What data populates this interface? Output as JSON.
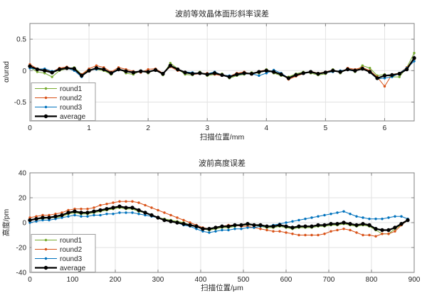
{
  "figure": {
    "background": "#ffffff"
  },
  "colors": {
    "grid": "#e2e2e2",
    "axis_box": "#828282",
    "tick_text": "#262626",
    "legend_border": "#9b9b9b",
    "legend_background": "#ffffff",
    "round1": "#77AC30",
    "round2": "#D95319",
    "round3": "#0072BD",
    "average": "#000000"
  },
  "chart_data": [
    {
      "id": "slope-error",
      "type": "line",
      "title": "波前等效晶体面形斜率误差",
      "xlabel": "扫描位置/mm",
      "ylabel": "α/urad",
      "xlim": [
        0,
        6.5
      ],
      "ylim": [
        -0.8,
        0.75
      ],
      "grid": true,
      "xticks": {
        "values": [
          0,
          1,
          2,
          3,
          4,
          5,
          6
        ],
        "labels": [
          "0",
          "1",
          "2",
          "3",
          "4",
          "5",
          "6"
        ]
      },
      "yticks": {
        "values": [
          -0.5,
          0,
          0.5
        ],
        "labels": [
          "-0.5",
          "0",
          "0.5"
        ]
      },
      "legend": {
        "position": "southwest",
        "entries": [
          "round1",
          "round2",
          "round3",
          "average"
        ]
      },
      "x": [
        0,
        0.125,
        0.25,
        0.375,
        0.5,
        0.625,
        0.75,
        0.875,
        1,
        1.125,
        1.25,
        1.375,
        1.5,
        1.625,
        1.75,
        1.875,
        2,
        2.125,
        2.25,
        2.375,
        2.5,
        2.625,
        2.75,
        2.875,
        3,
        3.125,
        3.25,
        3.375,
        3.5,
        3.625,
        3.75,
        3.875,
        4,
        4.125,
        4.25,
        4.375,
        4.5,
        4.625,
        4.75,
        4.875,
        5,
        5.125,
        5.25,
        5.375,
        5.5,
        5.625,
        5.75,
        5.875,
        6,
        6.125,
        6.25,
        6.375,
        6.5
      ],
      "series": [
        {
          "name": "round1",
          "color": "#77AC30",
          "line_width": 1,
          "marker_radius": 1.7,
          "values": [
            0.05,
            -0.02,
            -0.04,
            -0.1,
            0.0,
            0.03,
            0.05,
            -0.06,
            0.02,
            0.02,
            0.0,
            -0.06,
            0.04,
            -0.04,
            -0.06,
            0.0,
            -0.04,
            0.02,
            -0.07,
            0.12,
            0.03,
            -0.06,
            -0.07,
            -0.02,
            -0.08,
            -0.06,
            -0.05,
            -0.12,
            -0.08,
            -0.06,
            -0.03,
            -0.04,
            0.02,
            -0.04,
            -0.08,
            -0.1,
            -0.05,
            -0.02,
            -0.04,
            -0.07,
            -0.05,
            0.02,
            -0.04,
            0.03,
            -0.02,
            0.08,
            0.04,
            -0.08,
            -0.06,
            -0.1,
            -0.1,
            0.05,
            0.28
          ]
        },
        {
          "name": "round2",
          "color": "#D95319",
          "line_width": 1,
          "marker_radius": 1.7,
          "values": [
            0.1,
            0.03,
            0.02,
            -0.02,
            0.04,
            0.06,
            0.02,
            -0.06,
            0.03,
            0.08,
            0.05,
            -0.02,
            0.05,
            0.02,
            -0.01,
            -0.03,
            0.02,
            0.03,
            -0.04,
            0.06,
            0.0,
            -0.02,
            -0.06,
            -0.05,
            -0.04,
            -0.06,
            -0.08,
            -0.09,
            -0.04,
            -0.02,
            -0.06,
            -0.01,
            0.01,
            -0.03,
            -0.05,
            -0.14,
            -0.09,
            -0.05,
            -0.01,
            -0.04,
            -0.02,
            0.01,
            -0.03,
            0.04,
            0.02,
            0.05,
            0.0,
            -0.1,
            -0.25,
            -0.06,
            -0.04,
            0.05,
            0.18
          ]
        },
        {
          "name": "round3",
          "color": "#0072BD",
          "line_width": 1,
          "marker_radius": 1.7,
          "values": [
            0.04,
            0.02,
            0.03,
            -0.01,
            0.02,
            0.04,
            0.0,
            -0.1,
            0.01,
            0.02,
            0.02,
            -0.05,
            0.01,
            -0.01,
            -0.02,
            -0.01,
            -0.02,
            0.0,
            -0.04,
            0.07,
            0.02,
            -0.02,
            -0.03,
            -0.05,
            -0.05,
            -0.02,
            -0.07,
            -0.08,
            -0.07,
            -0.05,
            -0.05,
            -0.08,
            -0.04,
            0.01,
            -0.04,
            -0.12,
            -0.06,
            -0.05,
            -0.02,
            -0.05,
            -0.03,
            -0.02,
            0.0,
            0.01,
            -0.01,
            0.04,
            -0.03,
            -0.13,
            -0.12,
            -0.1,
            -0.04,
            0.04,
            0.15
          ]
        },
        {
          "name": "average",
          "color": "#000000",
          "line_width": 2.2,
          "marker_radius": 2.7,
          "values": [
            0.07,
            0.02,
            0.0,
            -0.03,
            0.02,
            0.04,
            0.03,
            -0.08,
            0.0,
            0.04,
            0.02,
            -0.04,
            0.02,
            -0.01,
            -0.03,
            -0.01,
            -0.02,
            0.01,
            -0.05,
            0.08,
            0.02,
            -0.03,
            -0.05,
            -0.04,
            -0.06,
            -0.04,
            -0.07,
            -0.1,
            -0.06,
            -0.04,
            -0.05,
            -0.02,
            0.0,
            -0.02,
            -0.06,
            -0.12,
            -0.07,
            -0.04,
            -0.02,
            -0.05,
            -0.03,
            0.0,
            -0.02,
            0.02,
            0.0,
            0.03,
            -0.02,
            -0.12,
            -0.08,
            -0.07,
            -0.05,
            0.02,
            0.2
          ]
        }
      ]
    },
    {
      "id": "height-error",
      "type": "line",
      "title": "波前高度误差",
      "xlabel": "扫描位置/μm",
      "ylabel": "高度/pm",
      "xlim": [
        0,
        900
      ],
      "ylim": [
        -40,
        40
      ],
      "grid": true,
      "xticks": {
        "values": [
          0,
          100,
          200,
          300,
          400,
          500,
          600,
          700,
          800,
          900
        ],
        "labels": [
          "0",
          "100",
          "200",
          "300",
          "400",
          "500",
          "600",
          "700",
          "800",
          "900"
        ]
      },
      "yticks": {
        "values": [
          -40,
          -20,
          0,
          20,
          40
        ],
        "labels": [
          "-40",
          "-20",
          "0",
          "20",
          "40"
        ]
      },
      "legend": {
        "position": "southwest",
        "entries": [
          "round1",
          "round2",
          "round3",
          "average"
        ]
      },
      "x": [
        0,
        15,
        30,
        45,
        60,
        75,
        90,
        105,
        120,
        135,
        150,
        165,
        180,
        195,
        210,
        225,
        240,
        255,
        270,
        285,
        300,
        315,
        330,
        345,
        360,
        375,
        390,
        405,
        420,
        435,
        450,
        465,
        480,
        495,
        510,
        525,
        540,
        555,
        570,
        585,
        600,
        615,
        630,
        645,
        660,
        675,
        690,
        705,
        720,
        735,
        750,
        765,
        780,
        795,
        810,
        825,
        840,
        855,
        870,
        885
      ],
      "series": [
        {
          "name": "round1",
          "color": "#77AC30",
          "line_width": 1,
          "marker_radius": 1.7,
          "values": [
            2,
            3,
            3,
            4,
            4,
            5,
            7,
            8,
            7,
            7,
            8,
            9,
            10,
            11,
            12,
            11,
            11,
            9,
            8,
            6,
            4,
            3,
            2,
            1,
            0,
            -2,
            -3,
            -5,
            -6,
            -5,
            -4,
            -4,
            -3,
            -2,
            -2,
            -2,
            -3,
            -4,
            -4,
            -3,
            -4,
            -5,
            -4,
            -4,
            -4,
            -3,
            -3,
            -2,
            -2,
            -1,
            -2,
            -3,
            -2,
            -3,
            -6,
            -9,
            -9,
            -5,
            -2,
            2
          ]
        },
        {
          "name": "round2",
          "color": "#D95319",
          "line_width": 1,
          "marker_radius": 1.7,
          "values": [
            4,
            5,
            6,
            6,
            7,
            8,
            10,
            11,
            11,
            11,
            12,
            14,
            15,
            16,
            17,
            17,
            17,
            16,
            14,
            12,
            10,
            8,
            6,
            4,
            2,
            0,
            -2,
            -4,
            -5,
            -4,
            -3,
            -2,
            -2,
            -3,
            -3,
            -4,
            -5,
            -6,
            -7,
            -7,
            -8,
            -9,
            -10,
            -10,
            -10,
            -10,
            -9,
            -7,
            -6,
            -5,
            -6,
            -8,
            -10,
            -10,
            -11,
            -9,
            -9,
            -7,
            -2,
            2
          ]
        },
        {
          "name": "round3",
          "color": "#0072BD",
          "line_width": 1,
          "marker_radius": 1.7,
          "values": [
            0,
            1,
            2,
            2,
            3,
            4,
            5,
            6,
            5,
            5,
            6,
            6,
            7,
            7,
            8,
            8,
            8,
            7,
            6,
            5,
            4,
            2,
            1,
            0,
            -2,
            -3,
            -5,
            -7,
            -8,
            -7,
            -6,
            -6,
            -5,
            -5,
            -4,
            -4,
            -3,
            -3,
            -2,
            -1,
            0,
            1,
            2,
            3,
            4,
            5,
            6,
            7,
            8,
            9,
            7,
            5,
            4,
            3,
            3,
            3,
            4,
            5,
            5,
            3
          ]
        },
        {
          "name": "average",
          "color": "#000000",
          "line_width": 2.2,
          "marker_radius": 2.7,
          "values": [
            2,
            3,
            4,
            4,
            5,
            6,
            8,
            9,
            8,
            8,
            9,
            10,
            11,
            12,
            13,
            12,
            12,
            10,
            8,
            6,
            4,
            2,
            1,
            0,
            -1,
            -2,
            -3,
            -5,
            -5,
            -4,
            -3,
            -3,
            -2,
            -2,
            -1,
            -2,
            -2,
            -3,
            -3,
            -2,
            -3,
            -4,
            -3,
            -3,
            -3,
            -2,
            -2,
            -1,
            -1,
            0,
            -1,
            -2,
            -1,
            -2,
            -5,
            -6,
            -6,
            -4,
            -1,
            2
          ]
        }
      ]
    }
  ]
}
